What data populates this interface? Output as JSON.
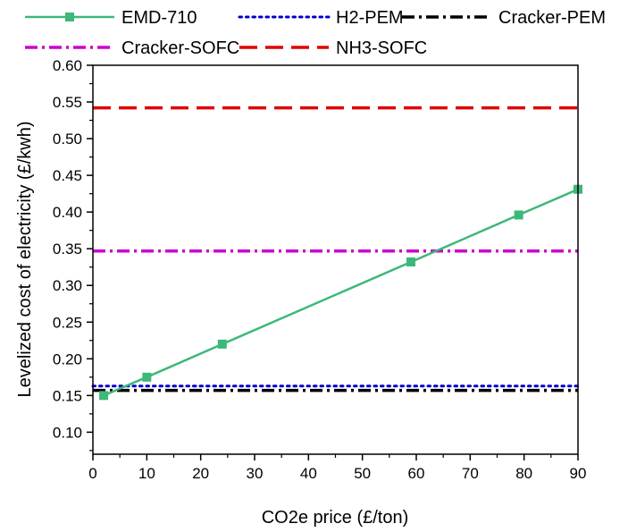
{
  "chart_data": {
    "type": "line",
    "xlabel": "CO2e price (£/ton)",
    "ylabel": "Levelized cost of electricity (£/kwh)",
    "xlim": [
      0,
      90
    ],
    "ylim": [
      0.07,
      0.6
    ],
    "x_ticks": [
      0,
      10,
      20,
      30,
      40,
      50,
      60,
      70,
      80,
      90
    ],
    "y_ticks": [
      0.1,
      0.15,
      0.2,
      0.25,
      0.3,
      0.35,
      0.4,
      0.45,
      0.5,
      0.55,
      0.6
    ],
    "grid": false,
    "legend_position": "top",
    "series": [
      {
        "name": "EMD-710",
        "color": "#3cb878",
        "style": "solid-square-markers",
        "x": [
          2,
          10,
          24,
          59,
          79,
          90
        ],
        "y": [
          0.15,
          0.175,
          0.22,
          0.332,
          0.396,
          0.431
        ]
      },
      {
        "name": "H2-PEM",
        "color": "#0000cc",
        "style": "dotted",
        "x": [
          0,
          90
        ],
        "y": [
          0.163,
          0.163
        ]
      },
      {
        "name": "Cracker-PEM",
        "color": "#000000",
        "style": "dash-dot",
        "x": [
          0,
          90
        ],
        "y": [
          0.157,
          0.157
        ]
      },
      {
        "name": "Cracker-SOFC",
        "color": "#cc00cc",
        "style": "dash-dot",
        "x": [
          0,
          90
        ],
        "y": [
          0.347,
          0.347
        ]
      },
      {
        "name": "NH3-SOFC",
        "color": "#e00000",
        "style": "dashed",
        "x": [
          0,
          90
        ],
        "y": [
          0.542,
          0.542
        ]
      }
    ]
  }
}
